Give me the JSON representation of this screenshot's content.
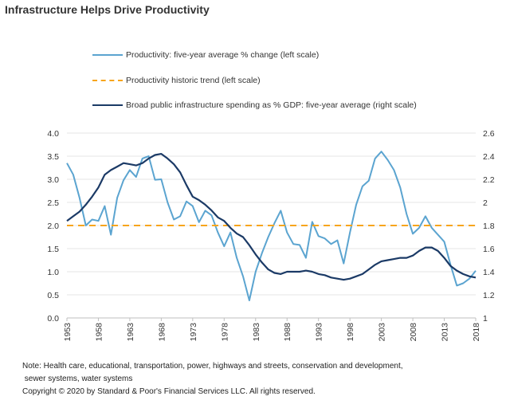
{
  "chart_data": {
    "type": "line",
    "title": "Infrastructure Helps Drive Productivity",
    "xlabel": "",
    "ylabel_left": "",
    "ylabel_right": "",
    "legend_position": "top",
    "grid": true,
    "x_ticks": [
      "1953",
      "1958",
      "1963",
      "1968",
      "1973",
      "1978",
      "1983",
      "1988",
      "1993",
      "1998",
      "2003",
      "2008",
      "2013",
      "2018"
    ],
    "y_left": {
      "range": [
        0,
        4.0
      ],
      "ticks": [
        "0.0",
        "0.5",
        "1.0",
        "1.5",
        "2.0",
        "2.5",
        "3.0",
        "3.5",
        "4.0"
      ]
    },
    "y_right": {
      "range": [
        1,
        2.6
      ],
      "ticks": [
        "1",
        "1.2",
        "1.4",
        "1.6",
        "1.8",
        "2",
        "2.2",
        "2.4",
        "2.6"
      ]
    },
    "x": [
      1953,
      1954,
      1955,
      1956,
      1957,
      1958,
      1959,
      1960,
      1961,
      1962,
      1963,
      1964,
      1965,
      1966,
      1967,
      1968,
      1969,
      1970,
      1971,
      1972,
      1973,
      1974,
      1975,
      1976,
      1977,
      1978,
      1979,
      1980,
      1981,
      1982,
      1983,
      1984,
      1985,
      1986,
      1987,
      1988,
      1989,
      1990,
      1991,
      1992,
      1993,
      1994,
      1995,
      1996,
      1997,
      1998,
      1999,
      2000,
      2001,
      2002,
      2003,
      2004,
      2005,
      2006,
      2007,
      2008,
      2009,
      2010,
      2011,
      2012,
      2013,
      2014,
      2015,
      2016,
      2017,
      2018
    ],
    "series": [
      {
        "name": "Productivity: five-year average % change (left scale)",
        "axis": "left",
        "color": "#5ba4d0",
        "style": "solid",
        "values": [
          3.35,
          3.1,
          2.6,
          2.0,
          2.13,
          2.1,
          2.42,
          1.8,
          2.6,
          2.98,
          3.2,
          3.05,
          3.45,
          3.5,
          2.99,
          3.0,
          2.5,
          2.13,
          2.2,
          2.52,
          2.42,
          2.07,
          2.32,
          2.22,
          1.85,
          1.55,
          1.85,
          1.3,
          0.9,
          0.38,
          1.0,
          1.4,
          1.75,
          2.05,
          2.32,
          1.85,
          1.6,
          1.58,
          1.3,
          2.08,
          1.77,
          1.72,
          1.6,
          1.68,
          1.18,
          1.85,
          2.45,
          2.85,
          2.97,
          3.45,
          3.6,
          3.42,
          3.2,
          2.82,
          2.25,
          1.82,
          1.95,
          2.2,
          1.95,
          1.8,
          1.65,
          1.15,
          0.7,
          0.75,
          0.85,
          1.02
        ]
      },
      {
        "name": "Productivity historic trend (left scale)",
        "axis": "left",
        "color": "#f7a51c",
        "style": "dashed",
        "values": [
          2.0,
          2.0
        ]
      },
      {
        "name": "Broad public infrastructure spending as % GDP: five-year average (right scale)",
        "axis": "right",
        "color": "#1b3a66",
        "style": "solid",
        "values": [
          1.84,
          1.88,
          1.92,
          1.98,
          2.05,
          2.13,
          2.24,
          2.28,
          2.31,
          2.34,
          2.33,
          2.32,
          2.34,
          2.38,
          2.41,
          2.42,
          2.38,
          2.33,
          2.26,
          2.15,
          2.05,
          2.02,
          1.98,
          1.93,
          1.87,
          1.84,
          1.78,
          1.73,
          1.7,
          1.63,
          1.55,
          1.48,
          1.42,
          1.39,
          1.38,
          1.4,
          1.4,
          1.4,
          1.41,
          1.4,
          1.38,
          1.37,
          1.35,
          1.34,
          1.33,
          1.34,
          1.36,
          1.38,
          1.42,
          1.46,
          1.49,
          1.5,
          1.51,
          1.52,
          1.52,
          1.54,
          1.58,
          1.61,
          1.61,
          1.58,
          1.52,
          1.45,
          1.41,
          1.38,
          1.36,
          1.35
        ]
      }
    ]
  },
  "legend": {
    "items": [
      "Productivity: five-year average % change (left scale)",
      "Productivity historic trend (left scale)",
      "Broad public infrastructure spending as % GDP: five-year average (right scale)"
    ]
  },
  "footer": {
    "note_line1": "Note: Health care, educational, transportation, power, highways and streets, conservation and development,",
    "note_line2": " sewer systems, water systems",
    "copyright": "Copyright © 2020 by Standard & Poor's Financial Services LLC. All rights reserved."
  }
}
